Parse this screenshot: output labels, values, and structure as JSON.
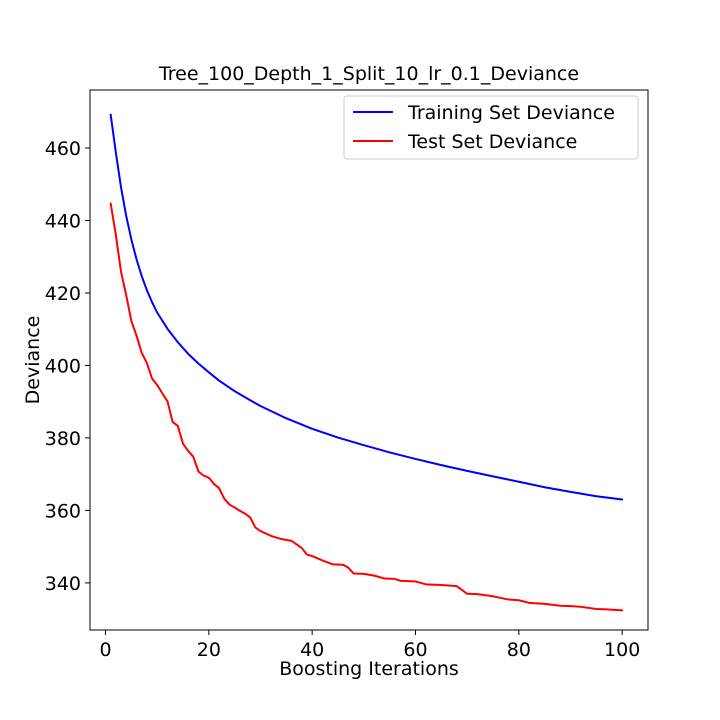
{
  "chart_data": {
    "type": "line",
    "title": "Tree_100_Depth_1_Split_10_lr_0.1_Deviance",
    "xlabel": "Boosting Iterations",
    "ylabel": "Deviance",
    "xlim": [
      -3,
      105
    ],
    "ylim": [
      327,
      476
    ],
    "xticks": [
      0,
      20,
      40,
      60,
      80,
      100
    ],
    "yticks": [
      340,
      360,
      380,
      400,
      420,
      440,
      460
    ],
    "grid": false,
    "legend_position": "top-right",
    "series": [
      {
        "name": "Training Set Deviance",
        "color": "#0000ff",
        "x": [
          1,
          2,
          3,
          4,
          5,
          6,
          7,
          8,
          9,
          10,
          12,
          14,
          16,
          18,
          20,
          22,
          25,
          28,
          30,
          35,
          40,
          45,
          50,
          55,
          60,
          65,
          70,
          75,
          80,
          85,
          90,
          95,
          100
        ],
        "y": [
          469.2,
          458.8,
          449.2,
          441.3,
          434.8,
          429.3,
          424.7,
          420.8,
          417.5,
          414.6,
          410.1,
          406.4,
          403.2,
          400.5,
          398.1,
          395.8,
          392.9,
          390.4,
          388.8,
          385.4,
          382.5,
          380.1,
          378.0,
          376.0,
          374.2,
          372.5,
          370.9,
          369.4,
          367.9,
          366.4,
          365.1,
          363.9,
          363.0
        ]
      },
      {
        "name": "Test Set Deviance",
        "color": "#ff0000",
        "x": [
          1,
          2,
          3,
          4,
          5,
          6,
          7,
          8,
          9,
          10,
          11,
          12,
          13,
          14,
          15,
          16,
          17,
          18,
          19,
          20,
          21,
          22,
          23,
          24,
          25,
          26,
          27,
          28,
          29,
          30,
          32,
          34,
          36,
          38,
          39,
          40,
          42,
          44,
          46,
          47,
          48,
          50,
          52,
          54,
          56,
          57,
          60,
          62,
          65,
          68,
          70,
          72,
          75,
          78,
          80,
          82,
          85,
          88,
          90,
          92,
          95,
          97,
          100
        ],
        "y": [
          444.7,
          436.0,
          425.9,
          419.4,
          412.3,
          408.2,
          403.5,
          400.7,
          396.4,
          394.6,
          392.3,
          390.1,
          384.4,
          383.3,
          378.4,
          376.4,
          374.8,
          370.7,
          369.6,
          369.0,
          367.3,
          366.1,
          363.2,
          361.6,
          360.8,
          359.9,
          359.1,
          358.1,
          355.3,
          354.3,
          353.0,
          352.1,
          351.6,
          349.6,
          347.8,
          347.4,
          346.2,
          345.1,
          345.0,
          344.2,
          342.6,
          342.5,
          342.0,
          341.2,
          341.1,
          340.6,
          340.4,
          339.6,
          339.4,
          339.1,
          337.0,
          336.9,
          336.3,
          335.4,
          335.2,
          334.5,
          334.2,
          333.7,
          333.6,
          333.4,
          332.8,
          332.7,
          332.4
        ]
      }
    ]
  }
}
